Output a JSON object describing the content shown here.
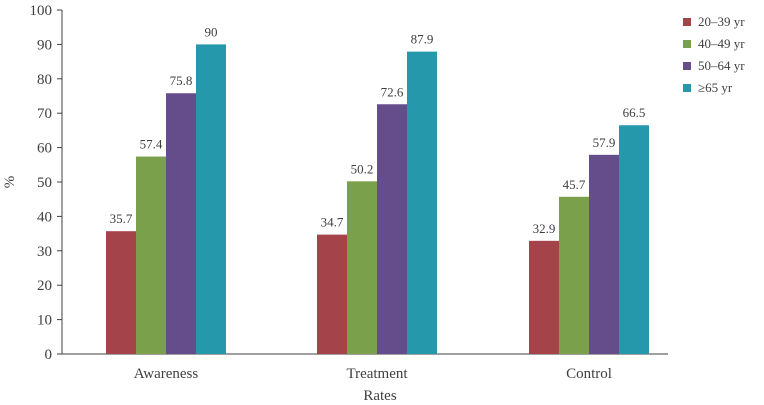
{
  "chart_data": {
    "type": "bar",
    "categories": [
      "Awareness",
      "Treatment",
      "Control"
    ],
    "series": [
      {
        "name": "20–39 yr",
        "color": "#A5434A",
        "values": [
          35.7,
          34.7,
          32.9
        ]
      },
      {
        "name": "40–49 yr",
        "color": "#7BA04C",
        "values": [
          57.4,
          50.2,
          45.7
        ]
      },
      {
        "name": "50–64 yr",
        "color": "#654D8C",
        "values": [
          75.8,
          72.6,
          57.9
        ]
      },
      {
        "name": "≥65 yr",
        "color": "#2698AC",
        "values": [
          90,
          87.9,
          66.5
        ]
      }
    ],
    "value_labels": [
      [
        "35.7",
        "34.7",
        "32.9"
      ],
      [
        "57.4",
        "50.2",
        "45.7"
      ],
      [
        "75.8",
        "72.6",
        "57.9"
      ],
      [
        "90",
        "87.9",
        "66.5"
      ]
    ],
    "yticks": [
      "0",
      "10",
      "20",
      "30",
      "40",
      "50",
      "60",
      "70",
      "80",
      "90",
      "100"
    ],
    "ylim": [
      0,
      100
    ],
    "xlabel": "Rates",
    "ylabel": "%",
    "title": "",
    "grid": false,
    "legend_position": "top-right"
  }
}
